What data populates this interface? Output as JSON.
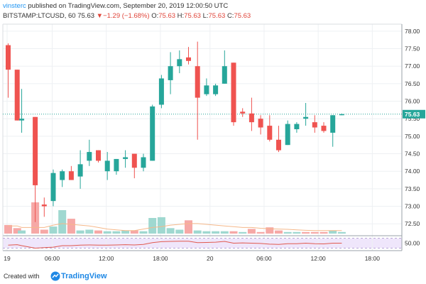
{
  "header": {
    "author": "vinsterc",
    "published_text": " published on TradingView.com, September 20, 2019 12:00:50 UTC",
    "symbol": "BITSTAMP:LTCUSD, 60",
    "last_price": "75.63",
    "change_arrow": "▼",
    "change": "−1.29 (−1.68%)",
    "o_label": "O:",
    "o_value": "75.63",
    "h_label": "H:",
    "h_value": "75.63",
    "l_label": "L:",
    "l_value": "75.63",
    "c_label": "C:",
    "c_value": "75.63"
  },
  "footer": {
    "created_with": "Created with",
    "brand": "TradingView"
  },
  "colors": {
    "up": "#26a69a",
    "down": "#ef5350",
    "vol_up": "#9fd8d0",
    "vol_down": "#f6a8a6",
    "grid": "#eef0f3",
    "price_line": "#26a69a",
    "rsi_band": "#efe6fb",
    "rsi_line": "#e05a4f",
    "vol_ma": "#f5b88a"
  },
  "chart_data": {
    "type": "candlestick",
    "symbol": "BITSTAMP:LTCUSD",
    "interval": "60",
    "ylim": [
      72.2,
      78.2
    ],
    "y_ticks": [
      "78.00",
      "77.50",
      "77.00",
      "76.50",
      "76.00",
      "75.50",
      "75.00",
      "74.50",
      "74.00",
      "73.50",
      "73.00",
      "72.50"
    ],
    "last_price_label": "75.63",
    "x_tick_labels": [
      "19",
      "06:00",
      "12:00",
      "18:00",
      "20",
      "06:00",
      "12:00",
      "18:00"
    ],
    "candles": [
      {
        "o": 77.6,
        "h": 77.65,
        "l": 76.1,
        "c": 76.9
      },
      {
        "o": 76.9,
        "h": 76.9,
        "l": 75.45,
        "c": 75.45
      },
      {
        "o": 75.45,
        "h": 76.35,
        "l": 75.1,
        "c": 75.5
      },
      {
        "o": 75.55,
        "h": 75.55,
        "l": 72.55,
        "c": 73.6
      },
      {
        "o": 73.05,
        "h": 73.25,
        "l": 72.7,
        "c": 73.0
      },
      {
        "o": 73.15,
        "h": 74.05,
        "l": 73.0,
        "c": 73.95
      },
      {
        "o": 73.75,
        "h": 74.05,
        "l": 73.55,
        "c": 74.0
      },
      {
        "o": 74.0,
        "h": 74.15,
        "l": 73.75,
        "c": 73.75
      },
      {
        "o": 73.85,
        "h": 74.6,
        "l": 73.5,
        "c": 74.2
      },
      {
        "o": 74.3,
        "h": 74.9,
        "l": 74.15,
        "c": 74.55
      },
      {
        "o": 74.6,
        "h": 74.6,
        "l": 74.25,
        "c": 74.3
      },
      {
        "o": 74.0,
        "h": 74.55,
        "l": 73.75,
        "c": 74.3
      },
      {
        "o": 74.0,
        "h": 74.35,
        "l": 73.9,
        "c": 74.35
      },
      {
        "o": 74.35,
        "h": 74.6,
        "l": 74.1,
        "c": 74.4
      },
      {
        "o": 74.5,
        "h": 74.5,
        "l": 73.8,
        "c": 74.1
      },
      {
        "o": 74.1,
        "h": 74.5,
        "l": 74.0,
        "c": 74.4
      },
      {
        "o": 74.3,
        "h": 75.9,
        "l": 74.3,
        "c": 75.85
      },
      {
        "o": 75.9,
        "h": 76.75,
        "l": 75.8,
        "c": 76.65
      },
      {
        "o": 76.6,
        "h": 77.4,
        "l": 76.2,
        "c": 77.0
      },
      {
        "o": 77.0,
        "h": 77.45,
        "l": 76.8,
        "c": 77.2
      },
      {
        "o": 77.25,
        "h": 77.55,
        "l": 77.05,
        "c": 77.15
      },
      {
        "o": 77.0,
        "h": 77.7,
        "l": 74.9,
        "c": 76.1
      },
      {
        "o": 76.2,
        "h": 76.65,
        "l": 76.15,
        "c": 76.45
      },
      {
        "o": 76.2,
        "h": 76.5,
        "l": 76.15,
        "c": 76.45
      },
      {
        "o": 76.5,
        "h": 77.45,
        "l": 76.5,
        "c": 77.0
      },
      {
        "o": 77.1,
        "h": 77.1,
        "l": 75.3,
        "c": 75.4
      },
      {
        "o": 75.7,
        "h": 75.8,
        "l": 75.55,
        "c": 75.65
      },
      {
        "o": 75.65,
        "h": 76.1,
        "l": 75.15,
        "c": 75.4
      },
      {
        "o": 75.5,
        "h": 75.6,
        "l": 75.05,
        "c": 75.25
      },
      {
        "o": 75.3,
        "h": 75.6,
        "l": 74.85,
        "c": 74.9
      },
      {
        "o": 74.9,
        "h": 75.3,
        "l": 74.55,
        "c": 74.6
      },
      {
        "o": 74.75,
        "h": 75.45,
        "l": 74.75,
        "c": 75.35
      },
      {
        "o": 75.2,
        "h": 75.4,
        "l": 75.1,
        "c": 75.35
      },
      {
        "o": 75.5,
        "h": 75.95,
        "l": 75.3,
        "c": 75.55
      },
      {
        "o": 75.4,
        "h": 75.6,
        "l": 75.1,
        "c": 75.25
      },
      {
        "o": 75.3,
        "h": 75.4,
        "l": 75.1,
        "c": 75.15
      },
      {
        "o": 75.1,
        "h": 75.6,
        "l": 74.7,
        "c": 75.6
      },
      {
        "o": 75.6,
        "h": 75.65,
        "l": 75.6,
        "c": 75.63
      }
    ],
    "candle_x_index": [
      0,
      2,
      3,
      6,
      8,
      10,
      12,
      14,
      16,
      18,
      20,
      22,
      24,
      26,
      28,
      30,
      32,
      34,
      36,
      38,
      40,
      42,
      44,
      46,
      48,
      50,
      52,
      54,
      56,
      58,
      60,
      62,
      64,
      66,
      68,
      70,
      72,
      74
    ],
    "volumes": [
      {
        "v": 0.55,
        "up": false
      },
      {
        "v": 0.35,
        "up": false
      },
      {
        "v": 0.2,
        "up": true
      },
      {
        "v": 2.0,
        "up": false
      },
      {
        "v": 0.25,
        "up": false
      },
      {
        "v": 0.45,
        "up": true
      },
      {
        "v": 1.5,
        "up": true
      },
      {
        "v": 0.95,
        "up": false
      },
      {
        "v": 0.2,
        "up": true
      },
      {
        "v": 0.25,
        "up": true
      },
      {
        "v": 0.2,
        "up": false
      },
      {
        "v": 0.15,
        "up": true
      },
      {
        "v": 0.15,
        "up": true
      },
      {
        "v": 0.2,
        "up": true
      },
      {
        "v": 0.2,
        "up": false
      },
      {
        "v": 0.15,
        "up": true
      },
      {
        "v": 1.0,
        "up": true
      },
      {
        "v": 1.05,
        "up": true
      },
      {
        "v": 0.35,
        "up": true
      },
      {
        "v": 0.25,
        "up": true
      },
      {
        "v": 0.85,
        "up": false
      },
      {
        "v": 0.2,
        "up": true
      },
      {
        "v": 0.15,
        "up": true
      },
      {
        "v": 0.15,
        "up": true
      },
      {
        "v": 0.15,
        "up": true
      },
      {
        "v": 0.15,
        "up": false
      },
      {
        "v": 0.1,
        "up": true
      },
      {
        "v": 0.3,
        "up": false
      },
      {
        "v": 0.1,
        "up": false
      },
      {
        "v": 0.4,
        "up": false
      },
      {
        "v": 0.2,
        "up": false
      },
      {
        "v": 0.1,
        "up": true
      },
      {
        "v": 0.1,
        "up": true
      },
      {
        "v": 0.1,
        "up": false
      },
      {
        "v": 0.1,
        "up": false
      },
      {
        "v": 0.1,
        "up": false
      },
      {
        "v": 0.2,
        "up": true
      },
      {
        "v": 0.1,
        "up": true
      }
    ],
    "volume_ma": [
      0.4,
      0.4,
      0.3,
      0.3,
      0.3,
      0.45,
      0.55,
      0.5,
      0.45,
      0.4,
      0.3,
      0.2,
      0.15,
      0.1,
      0.1,
      0.2,
      0.3,
      0.35,
      0.45,
      0.5,
      0.55,
      0.55,
      0.5,
      0.45,
      0.4,
      0.35,
      0.3,
      0.3,
      0.25,
      0.22,
      0.2,
      0.18,
      0.15,
      0.12,
      0.1,
      0.1,
      0.1,
      0.1
    ],
    "rsi_panel": {
      "ylim": [
        20,
        80
      ],
      "band": [
        30,
        70
      ],
      "tick_label": "50.00",
      "values": [
        42,
        44,
        40,
        30,
        32,
        34,
        40,
        40,
        42,
        43,
        42,
        42,
        43,
        44,
        43,
        45,
        52,
        56,
        57,
        58,
        58,
        52,
        53,
        54,
        57,
        50,
        51,
        50,
        49,
        46,
        45,
        48,
        48,
        50,
        48,
        47,
        50,
        50
      ]
    }
  }
}
